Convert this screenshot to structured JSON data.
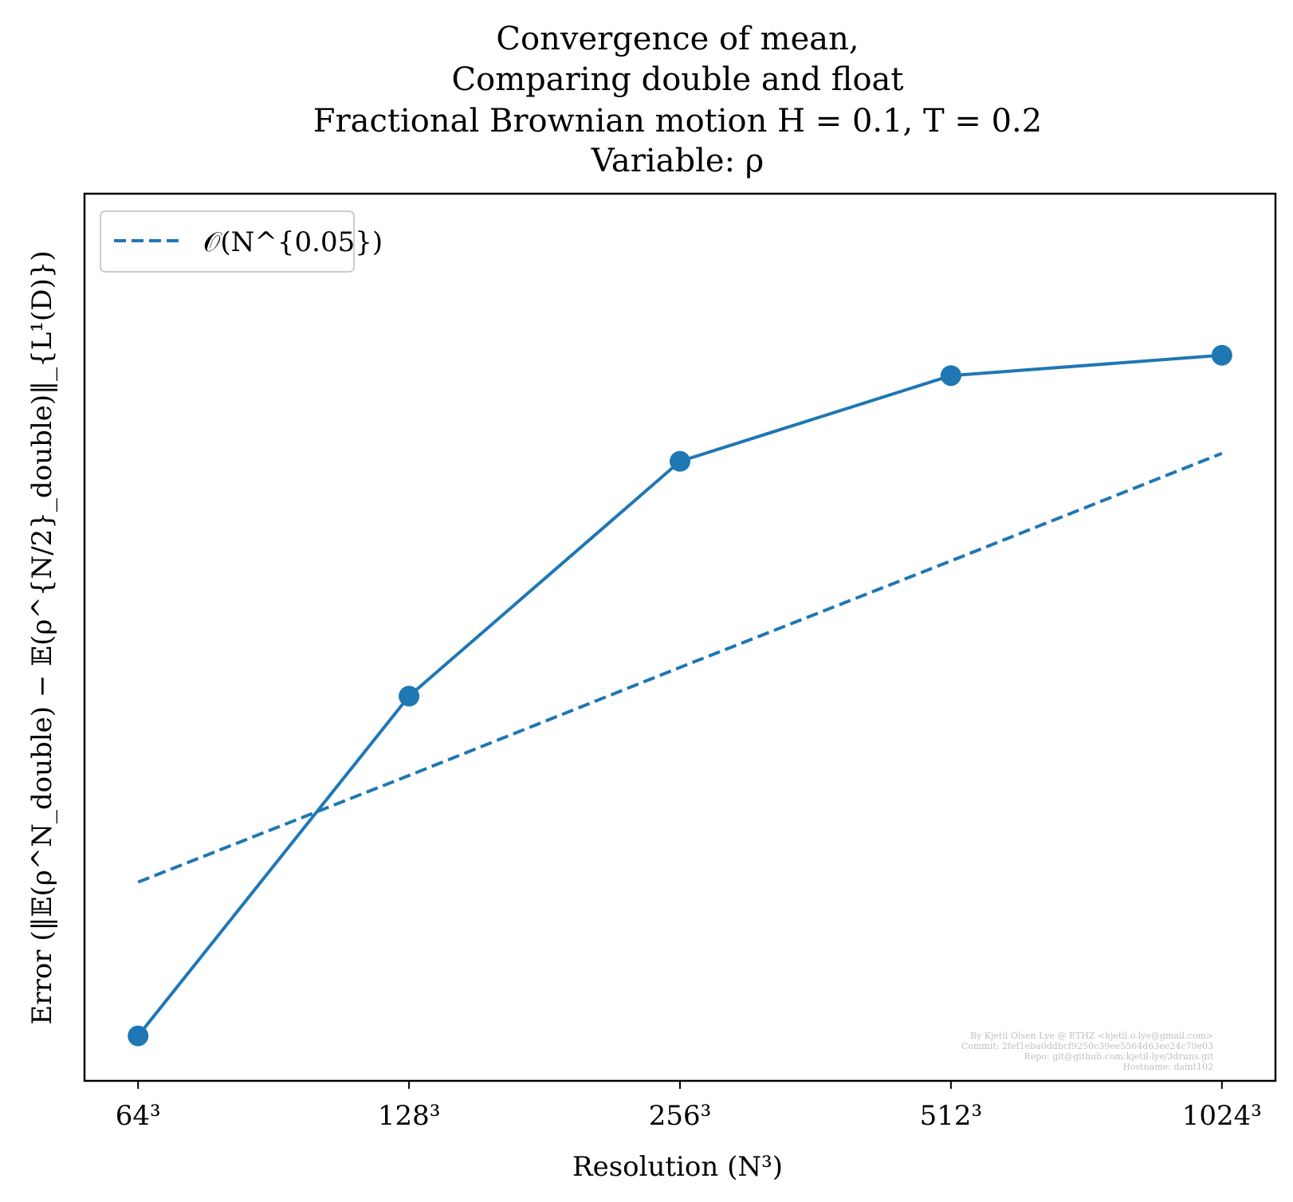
{
  "chart_data": {
    "type": "line",
    "title_lines": [
      "Convergence of mean,",
      "Comparing double and float",
      "Fractional Brownian motion H = 0.1, T = 0.2",
      "Variable: ρ"
    ],
    "xlabel": "Resolution (N³)",
    "ylabel": "Error (‖𝔼(ρ^N_double) − 𝔼(ρ^{N/2}_double)‖_{L¹(D)})",
    "x_scale": "log2",
    "y_scale": "log",
    "categories": [
      "64³",
      "128³",
      "256³",
      "512³",
      "1024³"
    ],
    "x": [
      64,
      128,
      256,
      512,
      1024
    ],
    "series": [
      {
        "values": [
          0.78,
          0.89,
          0.975,
          1.008,
          1.016
        ],
        "style": "solid",
        "marker": "circle"
      },
      {
        "name": "𝒪(N^{0.05})",
        "values": [
          0.828,
          0.863,
          0.9,
          0.938,
          0.978
        ],
        "style": "dashed",
        "marker": "none"
      }
    ],
    "ylim": [
      0.7665,
      1.0818
    ],
    "yticks_visible": false,
    "grid": false,
    "legend": {
      "placement": "top-left",
      "entries": [
        "𝒪(N^{0.05})"
      ]
    },
    "watermark_lines": [
      "By Kjetil Olsen Lye @ ETHZ <kjetil.o.lye@gmail.com>",
      "Commit: 2fef1eba0ddbcf9250c39ee5564d63ee24c70e03",
      "Repo: git@github.com:kjetil-lye/3druns.git",
      "Hostname: daint102"
    ],
    "colors": {
      "series": "#1f77b4",
      "axes": "#000000",
      "legend_border": "#cccccc",
      "watermark": "#bfbfbf"
    }
  }
}
